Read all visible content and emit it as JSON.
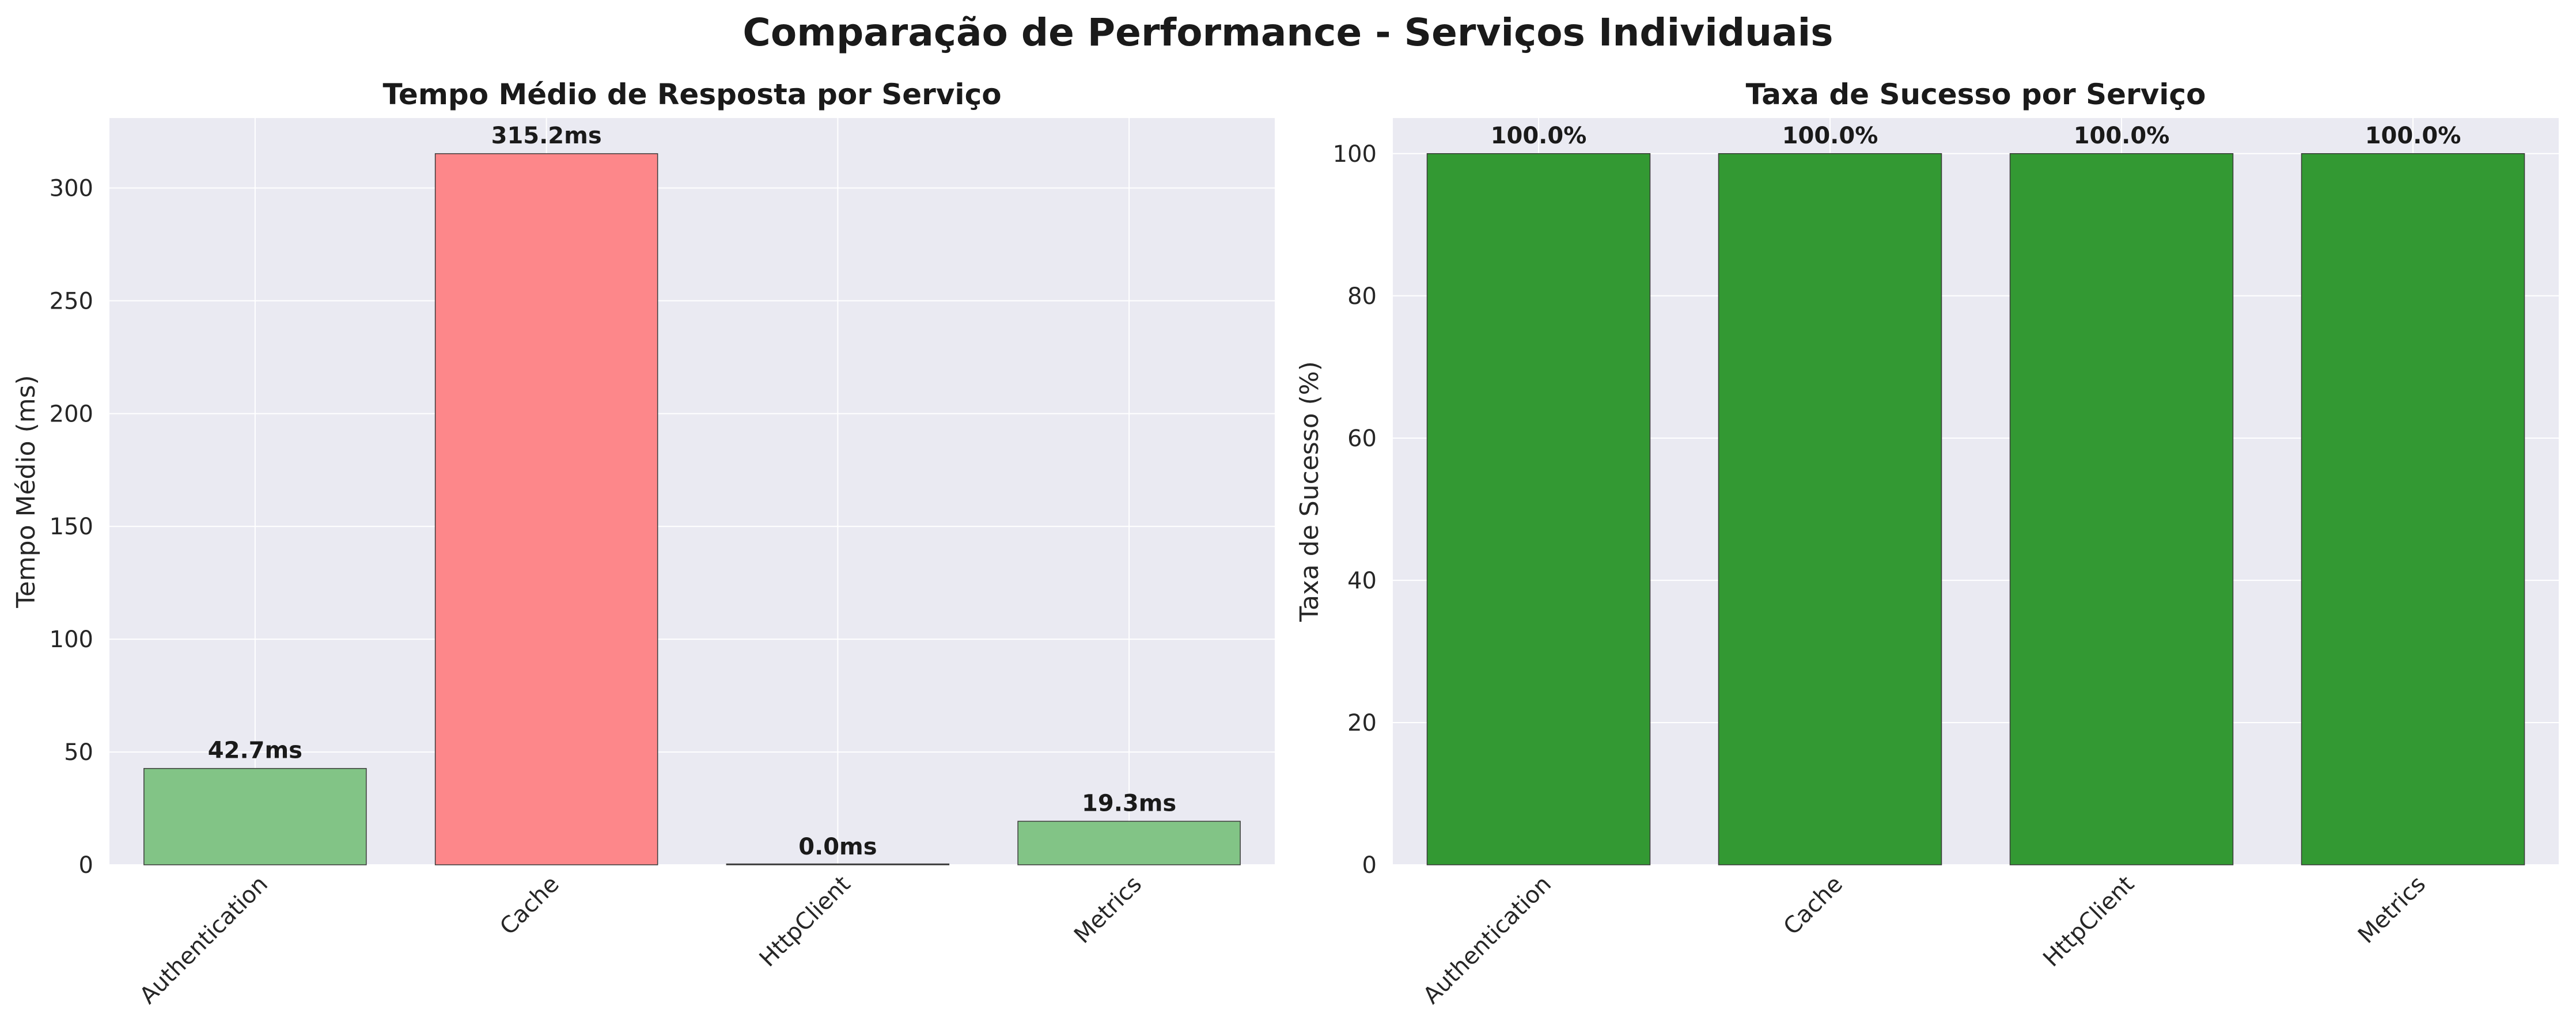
{
  "suptitle": "Comparação de Performance - Serviços Individuais",
  "chart_data": [
    {
      "type": "bar",
      "title": "Tempo Médio de Resposta por Serviço",
      "xlabel": "",
      "ylabel": "Tempo Médio (ms)",
      "categories": [
        "Authentication",
        "Cache",
        "HttpClient",
        "Metrics"
      ],
      "values": [
        42.7,
        315.2,
        0.0,
        19.3
      ],
      "data_labels": [
        "42.7ms",
        "315.2ms",
        "0.0ms",
        "19.3ms"
      ],
      "bar_colors": [
        "#82c486",
        "#fd878a",
        "#82c486",
        "#82c486"
      ],
      "ylim": [
        0,
        331
      ],
      "yticks": [
        0,
        50,
        100,
        150,
        200,
        250,
        300
      ],
      "grid": true,
      "background": "#eaeaf2"
    },
    {
      "type": "bar",
      "title": "Taxa de Sucesso por Serviço",
      "xlabel": "",
      "ylabel": "Taxa de Sucesso (%)",
      "categories": [
        "Authentication",
        "Cache",
        "HttpClient",
        "Metrics"
      ],
      "values": [
        100.0,
        100.0,
        100.0,
        100.0
      ],
      "data_labels": [
        "100.0%",
        "100.0%",
        "100.0%",
        "100.0%"
      ],
      "bar_colors": [
        "#339933",
        "#339933",
        "#339933",
        "#339933"
      ],
      "ylim": [
        0,
        105
      ],
      "yticks": [
        0,
        20,
        40,
        60,
        80,
        100
      ],
      "grid": true,
      "background": "#eaeaf2"
    }
  ]
}
